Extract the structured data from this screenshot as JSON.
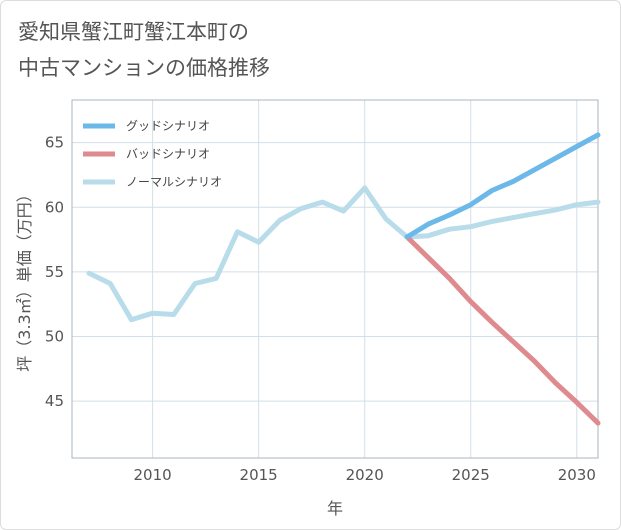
{
  "title": {
    "line1": "愛知県蟹江町蟹江本町の",
    "line2": "中古マンションの価格推移"
  },
  "chart_data": {
    "type": "line",
    "xlabel": "年",
    "ylabel": "坪（3.3㎡）単価（万円）",
    "xlim": [
      2006.2,
      2031
    ],
    "ylim": [
      40.6,
      68.3
    ],
    "xticks": [
      2010,
      2015,
      2020,
      2025,
      2030
    ],
    "yticks": [
      45,
      50,
      55,
      60,
      65
    ],
    "grid": true,
    "legend_position": "top-left",
    "series": [
      {
        "name": "グッドシナリオ",
        "color": "#6cb8e8",
        "x": [
          2022,
          2023,
          2024,
          2025,
          2026,
          2027,
          2028,
          2029,
          2030,
          2031
        ],
        "y": [
          57.7,
          58.7,
          59.4,
          60.2,
          61.3,
          62.0,
          62.9,
          63.8,
          64.7,
          65.6
        ]
      },
      {
        "name": "バッドシナリオ",
        "color": "#de8a8f",
        "x": [
          2022,
          2023,
          2024,
          2025,
          2026,
          2027,
          2028,
          2029,
          2030,
          2031
        ],
        "y": [
          57.7,
          56.1,
          54.5,
          52.7,
          51.1,
          49.6,
          48.1,
          46.4,
          44.9,
          43.3
        ]
      },
      {
        "name": "ノーマルシナリオ",
        "color": "#b9dcea",
        "x": [
          2007,
          2008,
          2009,
          2010,
          2011,
          2012,
          2013,
          2014,
          2015,
          2016,
          2017,
          2018,
          2019,
          2020,
          2021,
          2022,
          2023,
          2024,
          2025,
          2026,
          2027,
          2028,
          2029,
          2030,
          2031
        ],
        "y": [
          54.9,
          54.1,
          51.3,
          51.8,
          51.7,
          54.1,
          54.5,
          58.1,
          57.3,
          59.0,
          59.9,
          60.4,
          59.7,
          61.5,
          59.1,
          57.7,
          57.8,
          58.3,
          58.5,
          58.9,
          59.2,
          59.5,
          59.8,
          60.2,
          60.4
        ]
      }
    ]
  }
}
